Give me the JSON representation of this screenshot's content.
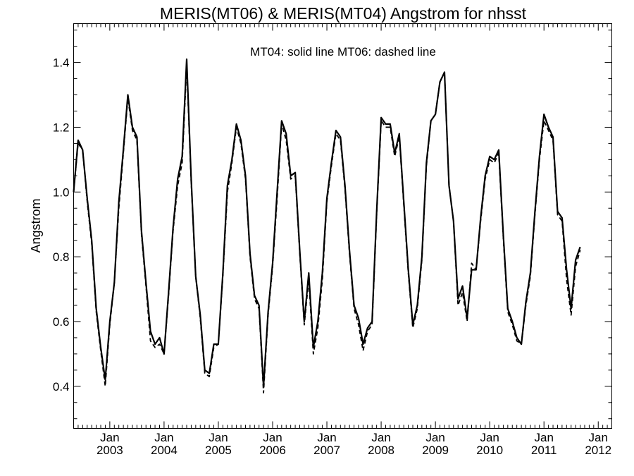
{
  "chart_data": {
    "type": "line",
    "title": "MERIS(MT06) & MERIS(MT04)  Angstrom for nhsst",
    "xlabel": "",
    "ylabel": "Angstrom",
    "annotation": "MT04: solid line   MT06: dashed line",
    "xlim": [
      "2002-05",
      "2012-04"
    ],
    "ylim": [
      0.27,
      1.52
    ],
    "yticks": [
      0.4,
      0.6,
      0.8,
      1.0,
      1.2,
      1.4
    ],
    "ytick_labels": [
      "0.4",
      "0.6",
      "0.8",
      "1.0",
      "1.2",
      "1.4"
    ],
    "xticks": [
      "2003-01",
      "2004-01",
      "2005-01",
      "2006-01",
      "2007-01",
      "2008-01",
      "2009-01",
      "2010-01",
      "2011-01",
      "2012-01"
    ],
    "xtick_labels": [
      {
        "month": "Jan",
        "year": "2003"
      },
      {
        "month": "Jan",
        "year": "2004"
      },
      {
        "month": "Jan",
        "year": "2005"
      },
      {
        "month": "Jan",
        "year": "2006"
      },
      {
        "month": "Jan",
        "year": "2007"
      },
      {
        "month": "Jan",
        "year": "2008"
      },
      {
        "month": "Jan",
        "year": "2009"
      },
      {
        "month": "Jan",
        "year": "2010"
      },
      {
        "month": "Jan",
        "year": "2011"
      },
      {
        "month": "Jan",
        "year": "2012"
      }
    ],
    "grid": false,
    "series": [
      {
        "name": "MT04",
        "style": "solid",
        "color": "#000000",
        "start": "2002-05",
        "values": [
          1.0,
          1.16,
          1.13,
          0.98,
          0.85,
          0.64,
          0.52,
          0.42,
          0.6,
          0.72,
          0.97,
          1.13,
          1.3,
          1.2,
          1.17,
          0.88,
          0.72,
          0.57,
          0.53,
          0.55,
          0.5,
          0.69,
          0.89,
          1.04,
          1.11,
          1.41,
          1.04,
          0.74,
          0.62,
          0.45,
          0.44,
          0.53,
          0.53,
          0.75,
          1.02,
          1.1,
          1.21,
          1.16,
          1.05,
          0.81,
          0.68,
          0.65,
          0.4,
          0.63,
          0.78,
          1.0,
          1.22,
          1.18,
          1.05,
          1.06,
          0.82,
          0.6,
          0.75,
          0.52,
          0.6,
          0.75,
          0.98,
          1.09,
          1.19,
          1.17,
          1.02,
          0.82,
          0.65,
          0.61,
          0.53,
          0.58,
          0.6,
          0.94,
          1.23,
          1.21,
          1.21,
          1.12,
          1.18,
          0.97,
          0.76,
          0.59,
          0.65,
          0.8,
          1.09,
          1.22,
          1.24,
          1.34,
          1.37,
          1.02,
          0.91,
          0.67,
          0.71,
          0.61,
          0.76,
          0.76,
          0.92,
          1.05,
          1.11,
          1.1,
          1.13,
          0.87,
          0.64,
          0.6,
          0.55,
          0.53,
          0.66,
          0.75,
          0.94,
          1.11,
          1.24,
          1.2,
          1.17,
          0.94,
          0.92,
          0.76,
          0.64,
          0.79,
          0.83
        ]
      },
      {
        "name": "MT06",
        "style": "dashed",
        "color": "#000000",
        "start": "2002-05",
        "values": [
          1.0,
          1.15,
          1.13,
          0.97,
          0.84,
          0.63,
          0.51,
          0.4,
          0.59,
          0.72,
          0.95,
          1.12,
          1.29,
          1.19,
          1.16,
          0.87,
          0.71,
          0.54,
          0.52,
          0.53,
          0.5,
          0.68,
          0.88,
          1.02,
          1.09,
          1.39,
          1.03,
          0.74,
          0.61,
          0.44,
          0.43,
          0.52,
          0.53,
          0.74,
          1.0,
          1.09,
          1.2,
          1.15,
          1.04,
          0.8,
          0.67,
          0.64,
          0.38,
          0.62,
          0.77,
          0.98,
          1.21,
          1.16,
          1.04,
          1.05,
          0.81,
          0.59,
          0.73,
          0.5,
          0.58,
          0.73,
          0.97,
          1.08,
          1.18,
          1.16,
          1.01,
          0.81,
          0.64,
          0.59,
          0.51,
          0.57,
          0.59,
          0.93,
          1.22,
          1.2,
          1.2,
          1.11,
          1.17,
          0.96,
          0.75,
          0.58,
          0.64,
          0.79,
          1.08,
          1.22,
          1.24,
          1.34,
          1.37,
          1.02,
          0.91,
          0.65,
          0.69,
          0.6,
          0.78,
          0.76,
          0.91,
          1.04,
          1.1,
          1.09,
          1.12,
          0.86,
          0.63,
          0.59,
          0.54,
          0.53,
          0.65,
          0.74,
          0.93,
          1.1,
          1.22,
          1.19,
          1.16,
          0.93,
          0.91,
          0.73,
          0.62,
          0.77,
          0.82
        ]
      }
    ]
  }
}
